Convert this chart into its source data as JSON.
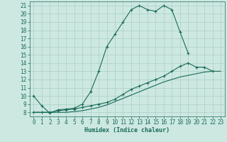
{
  "title": "",
  "xlabel": "Humidex (Indice chaleur)",
  "bg_color": "#cce8e0",
  "line_color": "#1a6b5a",
  "grid_color": "#aacfc5",
  "ylim": [
    7.5,
    21.5
  ],
  "xlim": [
    -0.5,
    23.5
  ],
  "yticks": [
    8,
    9,
    10,
    11,
    12,
    13,
    14,
    15,
    16,
    17,
    18,
    19,
    20,
    21
  ],
  "xticks": [
    0,
    1,
    2,
    3,
    4,
    5,
    6,
    7,
    8,
    9,
    10,
    11,
    12,
    13,
    14,
    15,
    16,
    17,
    18,
    19,
    20,
    21,
    22,
    23
  ],
  "curve1_x": [
    0,
    1,
    2,
    3,
    4,
    5,
    6,
    7,
    8,
    9,
    10,
    11,
    12,
    13,
    14,
    15,
    16,
    17,
    18,
    19
  ],
  "curve1_y": [
    10.0,
    8.8,
    7.9,
    8.3,
    8.4,
    8.5,
    9.0,
    10.5,
    13.0,
    16.0,
    17.5,
    19.0,
    20.5,
    21.0,
    20.5,
    20.3,
    21.0,
    20.5,
    17.8,
    15.2
  ],
  "curve2_x": [
    0,
    1,
    2,
    3,
    4,
    5,
    6,
    7,
    8,
    9,
    10,
    11,
    12,
    13,
    14,
    15,
    16,
    17,
    18,
    19,
    20,
    21,
    22
  ],
  "curve2_y": [
    8.0,
    8.0,
    8.0,
    8.2,
    8.3,
    8.4,
    8.6,
    8.8,
    9.0,
    9.2,
    9.6,
    10.2,
    10.8,
    11.2,
    11.6,
    12.0,
    12.4,
    13.0,
    13.6,
    14.0,
    13.5,
    13.5,
    13.0
  ],
  "curve3_x": [
    0,
    1,
    2,
    3,
    4,
    5,
    6,
    7,
    8,
    9,
    10,
    11,
    12,
    13,
    14,
    15,
    16,
    17,
    18,
    19,
    20,
    21,
    22,
    23
  ],
  "curve3_y": [
    8.0,
    8.0,
    8.0,
    8.0,
    8.0,
    8.1,
    8.2,
    8.4,
    8.6,
    8.9,
    9.3,
    9.7,
    10.1,
    10.5,
    10.9,
    11.3,
    11.7,
    12.0,
    12.3,
    12.5,
    12.7,
    12.9,
    13.0,
    13.0
  ]
}
